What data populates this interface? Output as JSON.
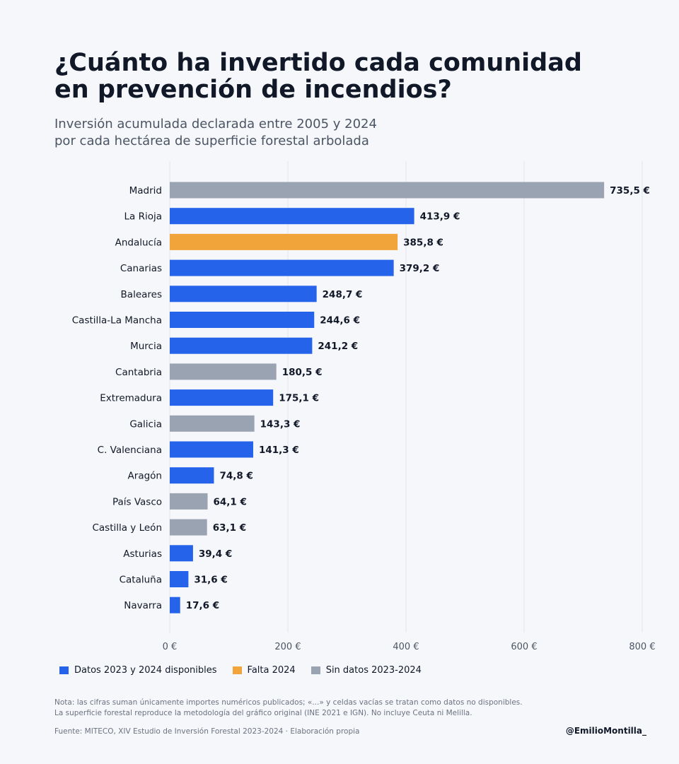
{
  "header": {
    "title_lines": [
      "¿Cuánto ha invertido cada comunidad",
      "en prevención de incendios?"
    ],
    "subtitle_lines": [
      "Inversión acumulada declarada entre 2005 y 2024",
      "por cada hectárea de superficie forestal arbolada"
    ]
  },
  "chart_data": {
    "type": "bar",
    "orientation": "horizontal",
    "categories": [
      "Madrid",
      "La Rioja",
      "Andalucía",
      "Canarias",
      "Baleares",
      "Castilla-La Mancha",
      "Murcia",
      "Cantabria",
      "Extremadura",
      "Galicia",
      "C. Valenciana",
      "Aragón",
      "País Vasco",
      "Castilla y León",
      "Asturias",
      "Cataluña",
      "Navarra"
    ],
    "values": [
      735.5,
      413.9,
      385.8,
      379.2,
      248.7,
      244.6,
      241.2,
      180.5,
      175.1,
      143.3,
      141.3,
      74.8,
      64.1,
      63.1,
      39.4,
      31.6,
      17.6
    ],
    "value_labels": [
      "735,5 €",
      "413,9 €",
      "385,8 €",
      "379,2 €",
      "248,7 €",
      "244,6 €",
      "241,2 €",
      "180,5 €",
      "175,1 €",
      "143,3 €",
      "141,3 €",
      "74,8 €",
      "64,1 €",
      "63,1 €",
      "39,4 €",
      "31,6 €",
      "17,6 €"
    ],
    "groups": [
      "sin",
      "disp",
      "falta",
      "disp",
      "disp",
      "disp",
      "disp",
      "sin",
      "disp",
      "sin",
      "disp",
      "disp",
      "sin",
      "sin",
      "disp",
      "disp",
      "disp"
    ],
    "group_colors": {
      "disp": "#2563eb",
      "falta": "#f0a43a",
      "sin": "#9aa3b2"
    },
    "xlim": [
      0,
      800
    ],
    "xticks": [
      0,
      200,
      400,
      600,
      800
    ],
    "xtick_labels": [
      "0 €",
      "200 €",
      "400 €",
      "600 €",
      "800 €"
    ],
    "grid": true,
    "legend_position": "bottom-left"
  },
  "legend": [
    {
      "label": "Datos 2023 y 2024 disponibles",
      "color": "#2563eb"
    },
    {
      "label": "Falta 2024",
      "color": "#f0a43a"
    },
    {
      "label": "Sin datos 2023-2024",
      "color": "#9aa3b2"
    }
  ],
  "footer": {
    "note_lines": [
      "Nota: las cifras suman únicamente importes numéricos publicados; «...» y celdas vacías se tratan como datos no disponibles.",
      "La superficie forestal reproduce la metodología del gráfico original (INE 2021 e IGN). No incluye Ceuta ni Melilla."
    ],
    "source": "Fuente: MITECO, XIV Estudio de Inversión Forestal 2023-2024 · Elaboración propia",
    "author": "@EmilioMontilla_"
  }
}
